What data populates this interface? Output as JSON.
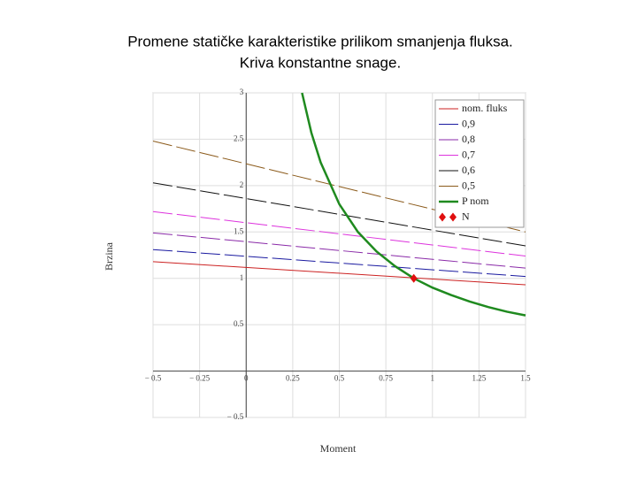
{
  "chart_data": {
    "type": "line",
    "title": "Promene statičke karakteristike prilikom smanjenja fluksa.",
    "subtitle": "Kriva konstantne snage.",
    "x_label": "Moment",
    "y_label": "Brzina",
    "xlim": [
      -0.5,
      1.5
    ],
    "ylim": [
      -0.5,
      3
    ],
    "xticks": [
      {
        "value": -0.5,
        "label": "− 0.5"
      },
      {
        "value": -0.25,
        "label": "− 0.25"
      },
      0,
      0.25,
      0.5,
      0.75,
      1,
      1.25,
      1.5
    ],
    "yticks": [
      {
        "value": -0.5,
        "label": "− 0.5"
      },
      0.5,
      1,
      1.5,
      2,
      2.5,
      3
    ],
    "grid": true,
    "legend": "upper right",
    "series": [
      {
        "name": "nom. fluks",
        "color": "#cc2222",
        "style": "solid",
        "x": [
          -0.5,
          1.5
        ],
        "values": [
          1.18,
          0.93
        ]
      },
      {
        "name": "0,9",
        "color": "#1a1aa0",
        "style": "dashed",
        "x": [
          -0.5,
          1.5
        ],
        "values": [
          1.31,
          1.02
        ]
      },
      {
        "name": "0,8",
        "color": "#8a2aa8",
        "style": "dashed",
        "x": [
          -0.5,
          1.5
        ],
        "values": [
          1.49,
          1.11
        ]
      },
      {
        "name": "0,7",
        "color": "#dd33dd",
        "style": "dashed",
        "x": [
          -0.5,
          1.5
        ],
        "values": [
          1.72,
          1.24
        ]
      },
      {
        "name": "0,6",
        "color": "#111111",
        "style": "dashed",
        "x": [
          -0.5,
          1.5
        ],
        "values": [
          2.03,
          1.35
        ]
      },
      {
        "name": "0,5",
        "color": "#8b5a1a",
        "style": "dashed",
        "x": [
          -0.5,
          1.5
        ],
        "values": [
          2.48,
          1.5
        ]
      },
      {
        "name": "P nom",
        "color": "#1f8a1f",
        "style": "thick",
        "x": [
          0.3,
          0.35,
          0.4,
          0.5,
          0.6,
          0.7,
          0.8,
          0.9,
          1.0,
          1.1,
          1.2,
          1.3,
          1.4,
          1.5
        ],
        "values": [
          3,
          2.57,
          2.25,
          1.8,
          1.5,
          1.29,
          1.13,
          1,
          0.9,
          0.82,
          0.75,
          0.69,
          0.64,
          0.6
        ]
      },
      {
        "name": "N",
        "color": "#e01010",
        "style": "marker",
        "x": [
          0.9
        ],
        "values": [
          1
        ]
      }
    ]
  }
}
